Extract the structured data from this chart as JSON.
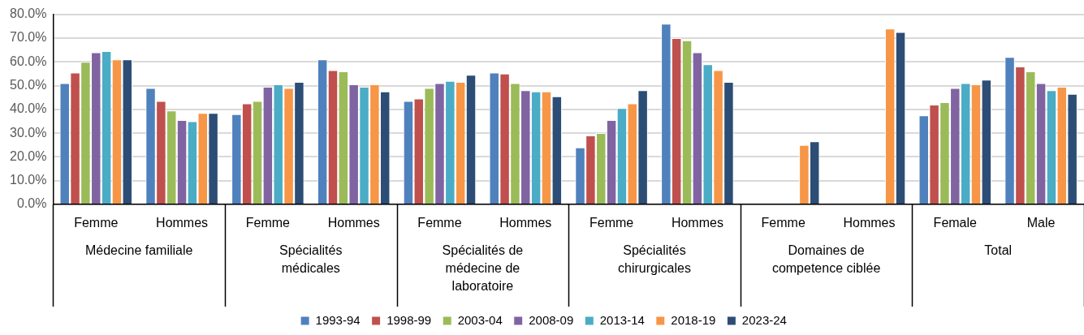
{
  "chart_data": {
    "type": "bar",
    "categories": [
      "Femme",
      "Hommes",
      "Femme",
      "Hommes",
      "Femme",
      "Hommes",
      "Femme",
      "Hommes",
      "Femme",
      "Hommes",
      "Female",
      "Male"
    ],
    "annotations": [
      "Médecine familiale",
      "Spécialités médicales",
      "Spécialités de médecine de laboratoire",
      "Spécialités chirurgicales",
      "Domaines de competence ciblée",
      "Total"
    ],
    "series": [
      {
        "name": "1993-94",
        "color": "#4f81bd",
        "values": [
          51,
          49,
          38,
          61,
          43.5,
          55.5,
          24,
          76,
          null,
          null,
          37.5,
          62
        ]
      },
      {
        "name": "1998-99",
        "color": "#c0504d",
        "values": [
          55.5,
          43.5,
          42.5,
          56.5,
          44.5,
          55,
          29,
          70,
          null,
          null,
          42,
          58
        ]
      },
      {
        "name": "2003-04",
        "color": "#9bbb59",
        "values": [
          60,
          39.5,
          43.5,
          56,
          49,
          51,
          30,
          69,
          null,
          null,
          43,
          56
        ]
      },
      {
        "name": "2008-09",
        "color": "#8064a2",
        "values": [
          64,
          35.5,
          49.5,
          50.5,
          51,
          48,
          35.5,
          64,
          null,
          null,
          49,
          51
        ]
      },
      {
        "name": "2013-14",
        "color": "#4bacc6",
        "values": [
          64.5,
          35,
          50.5,
          49.5,
          52,
          47.5,
          40.5,
          59,
          null,
          null,
          51,
          48
        ]
      },
      {
        "name": "2018-19",
        "color": "#f79646",
        "values": [
          61,
          38.5,
          49,
          50.5,
          51.5,
          47.5,
          42.5,
          56.5,
          25,
          74,
          50.5,
          49.5
        ]
      },
      {
        "name": "2023-24",
        "color": "#2c4d75",
        "values": [
          61,
          38.5,
          51.5,
          47.5,
          54.5,
          45.5,
          48,
          51.5,
          26.5,
          72.5,
          52.5,
          46.5
        ]
      }
    ],
    "ylim": [
      0,
      80
    ],
    "yticks": [
      {
        "value": 0,
        "label": "0.0%"
      },
      {
        "value": 10,
        "label": "10.0%"
      },
      {
        "value": 20,
        "label": "20.0%"
      },
      {
        "value": 30,
        "label": "30.0%"
      },
      {
        "value": 40,
        "label": "40.0%"
      },
      {
        "value": 50,
        "label": "50.0%"
      },
      {
        "value": 60,
        "label": "60.0%"
      },
      {
        "value": 70,
        "label": "70.0%"
      },
      {
        "value": 80,
        "label": "80.0%"
      }
    ],
    "grid": "y",
    "legend": "bottom"
  }
}
